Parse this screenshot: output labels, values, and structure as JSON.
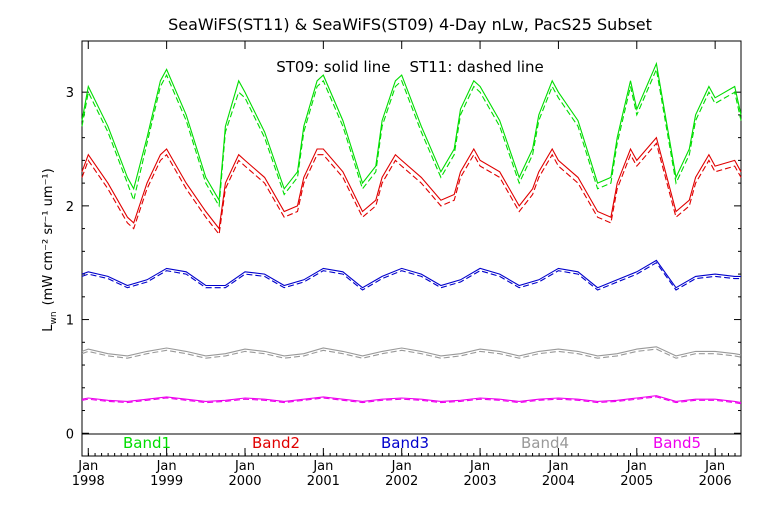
{
  "chart_data": {
    "type": "line",
    "title": "SeaWiFS(ST11) & SeaWiFS(ST09) 4-Day nLw, PacS25 Subset",
    "annotation": "ST09: solid line    ST11: dashed line",
    "ylabel_main": "L",
    "ylabel_sub": "wn",
    "ylabel_units": "(mW cm⁻² sr⁻¹ um⁻¹)",
    "xlim": [
      1997.92,
      2006.33
    ],
    "ylim": [
      -0.2,
      3.45
    ],
    "y_ticks": [
      "0",
      "1",
      "2",
      "3"
    ],
    "x_ticks": [
      {
        "top": "Jan",
        "bottom": "1998"
      },
      {
        "top": "Jan",
        "bottom": "1999"
      },
      {
        "top": "Jan",
        "bottom": "2000"
      },
      {
        "top": "Jan",
        "bottom": "2001"
      },
      {
        "top": "Jan",
        "bottom": "2002"
      },
      {
        "top": "Jan",
        "bottom": "2003"
      },
      {
        "top": "Jan",
        "bottom": "2004"
      },
      {
        "top": "Jan",
        "bottom": "2005"
      },
      {
        "top": "Jan",
        "bottom": "2006"
      }
    ],
    "legend_placement": "bottom",
    "grid": false,
    "series": [
      {
        "name": "Band1",
        "color": "#00dd00",
        "x": [
          1997.92,
          1998.0,
          1998.25,
          1998.5,
          1998.58,
          1998.75,
          1998.92,
          1999.0,
          1999.25,
          1999.5,
          1999.67,
          1999.75,
          1999.92,
          2000.0,
          2000.25,
          2000.5,
          2000.67,
          2000.75,
          2000.92,
          2001.0,
          2001.25,
          2001.5,
          2001.67,
          2001.75,
          2001.92,
          2002.0,
          2002.25,
          2002.5,
          2002.67,
          2002.75,
          2002.92,
          2003.0,
          2003.25,
          2003.5,
          2003.67,
          2003.75,
          2003.92,
          2004.0,
          2004.25,
          2004.5,
          2004.67,
          2004.75,
          2004.92,
          2005.0,
          2005.25,
          2005.5,
          2005.67,
          2005.75,
          2005.92,
          2006.0,
          2006.25,
          2006.33
        ],
        "solid": [
          2.75,
          3.05,
          2.7,
          2.25,
          2.15,
          2.6,
          3.1,
          3.2,
          2.8,
          2.25,
          2.05,
          2.7,
          3.1,
          3.0,
          2.65,
          2.15,
          2.3,
          2.7,
          3.1,
          3.15,
          2.75,
          2.2,
          2.35,
          2.75,
          3.1,
          3.15,
          2.7,
          2.3,
          2.5,
          2.85,
          3.1,
          3.05,
          2.75,
          2.25,
          2.5,
          2.8,
          3.1,
          3.0,
          2.75,
          2.2,
          2.25,
          2.6,
          3.1,
          2.85,
          3.25,
          2.25,
          2.5,
          2.8,
          3.05,
          2.95,
          3.05,
          2.8
        ],
        "dashed": [
          2.7,
          3.0,
          2.65,
          2.2,
          2.05,
          2.55,
          3.05,
          3.15,
          2.75,
          2.2,
          2.0,
          2.65,
          3.0,
          2.95,
          2.6,
          2.1,
          2.25,
          2.65,
          3.05,
          3.1,
          2.7,
          2.15,
          2.3,
          2.7,
          3.05,
          3.1,
          2.65,
          2.25,
          2.45,
          2.8,
          3.05,
          3.0,
          2.7,
          2.2,
          2.45,
          2.75,
          3.05,
          2.95,
          2.7,
          2.15,
          2.2,
          2.55,
          3.05,
          2.8,
          3.2,
          2.2,
          2.45,
          2.75,
          3.0,
          2.9,
          3.0,
          2.75
        ]
      },
      {
        "name": "Band2",
        "color": "#e00000",
        "x": [
          1997.92,
          1998.0,
          1998.25,
          1998.5,
          1998.58,
          1998.75,
          1998.92,
          1999.0,
          1999.25,
          1999.5,
          1999.67,
          1999.75,
          1999.92,
          2000.0,
          2000.25,
          2000.5,
          2000.67,
          2000.75,
          2000.92,
          2001.0,
          2001.25,
          2001.5,
          2001.67,
          2001.75,
          2001.92,
          2002.0,
          2002.25,
          2002.5,
          2002.67,
          2002.75,
          2002.92,
          2003.0,
          2003.25,
          2003.5,
          2003.67,
          2003.75,
          2003.92,
          2004.0,
          2004.25,
          2004.5,
          2004.67,
          2004.75,
          2004.92,
          2005.0,
          2005.25,
          2005.5,
          2005.67,
          2005.75,
          2005.92,
          2006.0,
          2006.25,
          2006.33
        ],
        "solid": [
          2.3,
          2.45,
          2.2,
          1.9,
          1.85,
          2.2,
          2.45,
          2.5,
          2.2,
          1.95,
          1.8,
          2.2,
          2.45,
          2.4,
          2.25,
          1.95,
          2.0,
          2.25,
          2.5,
          2.5,
          2.3,
          1.95,
          2.05,
          2.25,
          2.45,
          2.4,
          2.25,
          2.05,
          2.1,
          2.3,
          2.5,
          2.4,
          2.3,
          2.0,
          2.15,
          2.3,
          2.5,
          2.4,
          2.25,
          1.95,
          1.9,
          2.2,
          2.5,
          2.4,
          2.6,
          1.95,
          2.05,
          2.25,
          2.45,
          2.35,
          2.4,
          2.3
        ],
        "dashed": [
          2.25,
          2.4,
          2.15,
          1.85,
          1.8,
          2.15,
          2.4,
          2.45,
          2.15,
          1.9,
          1.75,
          2.15,
          2.4,
          2.35,
          2.2,
          1.9,
          1.95,
          2.2,
          2.45,
          2.45,
          2.25,
          1.9,
          2.0,
          2.2,
          2.4,
          2.35,
          2.2,
          2.0,
          2.05,
          2.25,
          2.45,
          2.35,
          2.25,
          1.95,
          2.1,
          2.25,
          2.45,
          2.35,
          2.2,
          1.9,
          1.85,
          2.15,
          2.45,
          2.35,
          2.55,
          1.9,
          2.0,
          2.2,
          2.4,
          2.3,
          2.35,
          2.25
        ]
      },
      {
        "name": "Band3",
        "color": "#0000cc",
        "x": [
          1997.92,
          1998.0,
          1998.25,
          1998.5,
          1998.75,
          1999.0,
          1999.25,
          1999.5,
          1999.75,
          2000.0,
          2000.25,
          2000.5,
          2000.75,
          2001.0,
          2001.25,
          2001.5,
          2001.75,
          2002.0,
          2002.25,
          2002.5,
          2002.75,
          2003.0,
          2003.25,
          2003.5,
          2003.75,
          2004.0,
          2004.25,
          2004.5,
          2004.75,
          2005.0,
          2005.25,
          2005.5,
          2005.75,
          2006.0,
          2006.25,
          2006.33
        ],
        "solid": [
          1.4,
          1.42,
          1.38,
          1.3,
          1.35,
          1.45,
          1.42,
          1.3,
          1.3,
          1.42,
          1.4,
          1.3,
          1.35,
          1.45,
          1.42,
          1.28,
          1.38,
          1.45,
          1.4,
          1.3,
          1.35,
          1.45,
          1.4,
          1.3,
          1.35,
          1.45,
          1.42,
          1.28,
          1.35,
          1.42,
          1.52,
          1.28,
          1.38,
          1.4,
          1.38,
          1.38
        ],
        "dashed": [
          1.38,
          1.4,
          1.36,
          1.28,
          1.33,
          1.43,
          1.4,
          1.28,
          1.28,
          1.4,
          1.38,
          1.28,
          1.33,
          1.43,
          1.4,
          1.26,
          1.36,
          1.43,
          1.38,
          1.28,
          1.33,
          1.43,
          1.38,
          1.28,
          1.33,
          1.43,
          1.4,
          1.26,
          1.33,
          1.4,
          1.5,
          1.26,
          1.36,
          1.38,
          1.36,
          1.36
        ]
      },
      {
        "name": "Band4",
        "color": "#999999",
        "x": [
          1997.92,
          1998.0,
          1998.25,
          1998.5,
          1998.75,
          1999.0,
          1999.25,
          1999.5,
          1999.75,
          2000.0,
          2000.25,
          2000.5,
          2000.75,
          2001.0,
          2001.25,
          2001.5,
          2001.75,
          2002.0,
          2002.25,
          2002.5,
          2002.75,
          2003.0,
          2003.25,
          2003.5,
          2003.75,
          2004.0,
          2004.25,
          2004.5,
          2004.75,
          2005.0,
          2005.25,
          2005.5,
          2005.75,
          2006.0,
          2006.25,
          2006.33
        ],
        "solid": [
          0.72,
          0.74,
          0.7,
          0.68,
          0.72,
          0.75,
          0.72,
          0.68,
          0.7,
          0.74,
          0.72,
          0.68,
          0.7,
          0.75,
          0.72,
          0.68,
          0.72,
          0.75,
          0.72,
          0.68,
          0.7,
          0.74,
          0.72,
          0.68,
          0.72,
          0.74,
          0.72,
          0.68,
          0.7,
          0.74,
          0.76,
          0.68,
          0.72,
          0.72,
          0.7,
          0.69
        ],
        "dashed": [
          0.7,
          0.72,
          0.68,
          0.66,
          0.7,
          0.73,
          0.7,
          0.66,
          0.68,
          0.72,
          0.7,
          0.66,
          0.68,
          0.73,
          0.7,
          0.66,
          0.7,
          0.73,
          0.7,
          0.66,
          0.68,
          0.72,
          0.7,
          0.66,
          0.7,
          0.72,
          0.7,
          0.66,
          0.68,
          0.72,
          0.74,
          0.66,
          0.7,
          0.7,
          0.68,
          0.67
        ]
      },
      {
        "name": "Band5",
        "color": "#ee00ee",
        "x": [
          1997.92,
          1998.0,
          1998.25,
          1998.5,
          1998.75,
          1999.0,
          1999.25,
          1999.5,
          1999.75,
          2000.0,
          2000.25,
          2000.5,
          2000.75,
          2001.0,
          2001.25,
          2001.5,
          2001.75,
          2002.0,
          2002.25,
          2002.5,
          2002.75,
          2003.0,
          2003.25,
          2003.5,
          2003.75,
          2004.0,
          2004.25,
          2004.5,
          2004.75,
          2005.0,
          2005.25,
          2005.5,
          2005.75,
          2006.0,
          2006.25,
          2006.33
        ],
        "solid": [
          0.3,
          0.31,
          0.29,
          0.28,
          0.3,
          0.32,
          0.3,
          0.28,
          0.29,
          0.31,
          0.3,
          0.28,
          0.3,
          0.32,
          0.3,
          0.28,
          0.3,
          0.31,
          0.3,
          0.28,
          0.29,
          0.31,
          0.3,
          0.28,
          0.3,
          0.31,
          0.3,
          0.28,
          0.29,
          0.31,
          0.33,
          0.28,
          0.3,
          0.3,
          0.28,
          0.27
        ],
        "dashed": [
          0.29,
          0.3,
          0.28,
          0.27,
          0.29,
          0.31,
          0.29,
          0.27,
          0.28,
          0.3,
          0.29,
          0.27,
          0.29,
          0.31,
          0.29,
          0.27,
          0.29,
          0.3,
          0.29,
          0.27,
          0.28,
          0.3,
          0.29,
          0.27,
          0.29,
          0.3,
          0.29,
          0.27,
          0.28,
          0.3,
          0.32,
          0.27,
          0.29,
          0.29,
          0.27,
          0.26
        ]
      }
    ]
  }
}
